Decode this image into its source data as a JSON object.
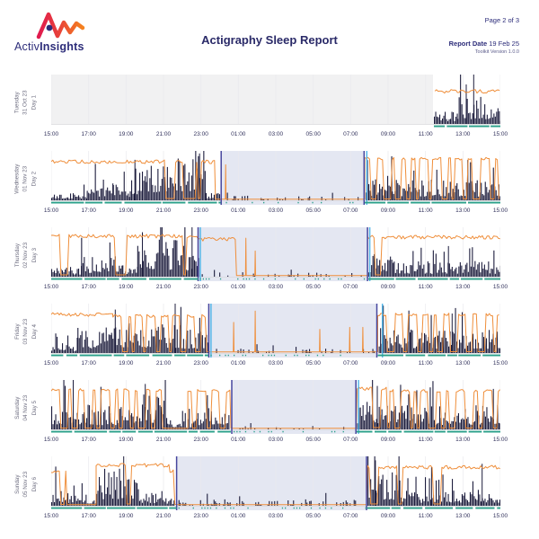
{
  "header": {
    "brand_light": "Activ",
    "brand_bold": "Insights",
    "title": "Actigraphy Sleep Report",
    "page": "Page 2 of 3",
    "report_date_label": "Report Date",
    "report_date": "19 Feb 25",
    "toolkit_version": "Toolkit Version 1.0.0"
  },
  "colors": {
    "bars": "#1d1d3d",
    "light_line": "#ef8e3a",
    "sleep_fill": "#cdd4e8",
    "sleep_edge_purple": "#46469e",
    "sleep_edge_cyan": "#55b6e8",
    "wear": "#2ba08a",
    "no_data": "#f1f1f2",
    "grid": "#e9e9ed",
    "baseline": "#d8d8dc",
    "axis_text": "#32325c",
    "navy_text": "#2d2d7a",
    "logo_red": "#e01a4f",
    "logo_orange": "#f5821f"
  },
  "chart_data": {
    "type": "bar",
    "subtype": "actigraphy-multiday-timeseries",
    "time_base": "hours offset from 15:00 (0 = 15:00, 24 = 15:00 next day)",
    "x_ticks": [
      "15:00",
      "17:00",
      "19:00",
      "21:00",
      "23:00",
      "01:00",
      "03:00",
      "05:00",
      "07:00",
      "09:00",
      "11:00",
      "13:00",
      "15:00"
    ],
    "x_range_hours": [
      0,
      24
    ],
    "grid": "vertical lines at 2-hour ticks",
    "series_semantics": {
      "navy_bars": "physical activity (acceleration)",
      "orange_line": "light exposure",
      "shaded_region": "detected sleep window",
      "purple_vertical_lines": "sleep onset / offset",
      "cyan_vertical_lines": "secondary sleep boundary marker",
      "teal_strip": "wear time indicator",
      "gray_block": "no data recorded"
    },
    "days": [
      {
        "name": "Tuesday",
        "date": "31 Oct 23",
        "day": "Day 1",
        "seed": 11,
        "no_data": [
          0,
          20.4
        ],
        "sleep": null,
        "sleep_onset": null,
        "sleep_wake": null,
        "activity": [
          {
            "a": 20.45,
            "b": 21.7,
            "h": 0.3
          },
          {
            "a": 21.7,
            "b": 23.2,
            "h": 0.55
          },
          {
            "a": 23.2,
            "b": 24,
            "h": 0.32
          }
        ],
        "spikes": [
          {
            "t": 22.55,
            "h": 1.0
          },
          {
            "t": 22.15,
            "h": 0.8
          }
        ],
        "light": [
          {
            "a": 20.5,
            "b": 24,
            "m": "high",
            "lvl": 0.34
          }
        ],
        "light_spikes": [],
        "wear": [
          [
            20.45,
            24
          ]
        ]
      },
      {
        "name": "Wednesday",
        "date": "01 Nov 23",
        "day": "Day 2",
        "seed": 22,
        "no_data": null,
        "sleep": {
          "a": 9.08,
          "b": 16.72,
          "lines": [
            {
              "t": 9.08,
              "c": "purple"
            },
            {
              "t": 16.72,
              "c": "purple"
            },
            {
              "t": 16.86,
              "c": "cyan"
            }
          ]
        },
        "sleep_onset": "00:05",
        "sleep_wake": "07:45",
        "activity": [
          {
            "a": 0,
            "b": 1.9,
            "h": 0.18
          },
          {
            "a": 1.9,
            "b": 3.3,
            "h": 0.42
          },
          {
            "a": 3.3,
            "b": 4.2,
            "h": 0.35
          },
          {
            "a": 4.2,
            "b": 5.1,
            "h": 0.65
          },
          {
            "a": 5.1,
            "b": 8.25,
            "h": 0.92
          },
          {
            "a": 8.25,
            "b": 9.05,
            "h": 0.15
          },
          {
            "a": 9.1,
            "b": 16.7,
            "h": 0.1,
            "d": 0.22
          },
          {
            "a": 16.8,
            "b": 18.2,
            "h": 0.5
          },
          {
            "a": 18.2,
            "b": 24,
            "h": 0.42
          }
        ],
        "spikes": [
          {
            "t": 4.45,
            "h": 0.82
          },
          {
            "t": 7.9,
            "h": 0.95
          }
        ],
        "light": [
          {
            "a": 0,
            "b": 8.78,
            "m": "high",
            "lvl": 0.22
          },
          {
            "a": 8.78,
            "b": 16.75,
            "m": "low"
          },
          {
            "a": 16.75,
            "b": 24,
            "m": "mix",
            "lvl": 0.16
          }
        ],
        "light_spikes": [
          {
            "t": 9.32,
            "h": 0.72
          }
        ],
        "wear": [
          [
            0,
            9.05
          ],
          [
            16.75,
            24
          ]
        ]
      },
      {
        "name": "Thursday",
        "date": "02 Nov 23",
        "day": "Day 3",
        "seed": 33,
        "no_data": null,
        "sleep": {
          "a": 7.85,
          "b": 16.9,
          "lines": [
            {
              "t": 7.85,
              "c": "purple"
            },
            {
              "t": 7.97,
              "c": "cyan"
            },
            {
              "t": 16.9,
              "c": "purple"
            },
            {
              "t": 17.02,
              "c": "cyan"
            }
          ]
        },
        "sleep_onset": "22:50",
        "sleep_wake": "07:55",
        "activity": [
          {
            "a": 0,
            "b": 1.6,
            "h": 0.22
          },
          {
            "a": 1.6,
            "b": 3.8,
            "h": 0.42
          },
          {
            "a": 3.8,
            "b": 4.6,
            "h": 0.3
          },
          {
            "a": 4.6,
            "b": 7.2,
            "h": 0.78
          },
          {
            "a": 7.2,
            "b": 7.85,
            "h": 0.55
          },
          {
            "a": 7.9,
            "b": 16.85,
            "h": 0.09,
            "d": 0.28
          },
          {
            "a": 16.95,
            "b": 18.3,
            "h": 0.48
          },
          {
            "a": 18.3,
            "b": 24,
            "h": 0.32
          }
        ],
        "spikes": [
          {
            "t": 7.5,
            "h": 1.0
          },
          {
            "t": 4.85,
            "h": 0.9
          },
          {
            "t": 21.2,
            "h": 0.62
          }
        ],
        "light": [
          {
            "a": 0,
            "b": 7.85,
            "m": "high",
            "lvl": 0.18
          },
          {
            "a": 7.85,
            "b": 9.9,
            "m": "high",
            "lvl": 0.24
          },
          {
            "a": 9.9,
            "b": 16.9,
            "m": "low"
          },
          {
            "a": 16.9,
            "b": 24,
            "m": "high",
            "lvl": 0.2
          }
        ],
        "light_spikes": [
          {
            "t": 10.4,
            "h": 0.78
          },
          {
            "t": 10.9,
            "h": 0.52
          }
        ],
        "wear": [
          [
            0,
            7.85
          ],
          [
            16.95,
            24
          ]
        ]
      },
      {
        "name": "Friday",
        "date": "03 Nov 23",
        "day": "Day 4",
        "seed": 44,
        "no_data": null,
        "sleep": {
          "a": 8.42,
          "b": 17.4,
          "lines": [
            {
              "t": 8.42,
              "c": "purple"
            },
            {
              "t": 8.54,
              "c": "cyan"
            },
            {
              "t": 17.4,
              "c": "purple"
            },
            {
              "t": 17.7,
              "c": "cyan"
            }
          ]
        },
        "sleep_onset": "23:25",
        "sleep_wake": "08:25",
        "activity": [
          {
            "a": 0,
            "b": 1.4,
            "h": 0.2
          },
          {
            "a": 1.4,
            "b": 3.2,
            "h": 0.52
          },
          {
            "a": 3.2,
            "b": 4.4,
            "h": 0.62
          },
          {
            "a": 4.4,
            "b": 6.9,
            "h": 0.58
          },
          {
            "a": 6.9,
            "b": 8.4,
            "h": 0.48
          },
          {
            "a": 8.45,
            "b": 17.35,
            "h": 0.09,
            "d": 0.2
          },
          {
            "a": 17.5,
            "b": 19.2,
            "h": 0.52
          },
          {
            "a": 19.2,
            "b": 24,
            "h": 0.48
          }
        ],
        "spikes": [
          {
            "t": 6.6,
            "h": 1.0
          },
          {
            "t": 3.4,
            "h": 0.88
          },
          {
            "t": 21.4,
            "h": 0.8
          }
        ],
        "light": [
          {
            "a": 0,
            "b": 3.3,
            "m": "high",
            "lvl": 0.22
          },
          {
            "a": 3.3,
            "b": 8.4,
            "m": "mix",
            "lvl": 0.25
          },
          {
            "a": 8.4,
            "b": 17.45,
            "m": "low"
          },
          {
            "a": 17.45,
            "b": 24,
            "m": "mix",
            "lvl": 0.22
          }
        ],
        "light_spikes": [
          {
            "t": 9.75,
            "h": 0.62
          },
          {
            "t": 10.9,
            "h": 0.85
          },
          {
            "t": 14.35,
            "h": 0.48
          },
          {
            "t": 15.95,
            "h": 0.52
          },
          {
            "t": 16.65,
            "h": 0.52
          }
        ],
        "wear": [
          [
            0,
            8.4
          ],
          [
            17.45,
            24
          ]
        ]
      },
      {
        "name": "Saturday",
        "date": "04 Nov 23",
        "day": "Day 5",
        "seed": 55,
        "no_data": null,
        "sleep": {
          "a": 9.65,
          "b": 16.28,
          "lines": [
            {
              "t": 9.65,
              "c": "purple"
            },
            {
              "t": 16.28,
              "c": "purple"
            },
            {
              "t": 16.42,
              "c": "cyan"
            }
          ]
        },
        "sleep_onset": "00:40",
        "sleep_wake": "07:15",
        "activity": [
          {
            "a": 0,
            "b": 2.2,
            "h": 0.55
          },
          {
            "a": 2.2,
            "b": 4.2,
            "h": 0.48
          },
          {
            "a": 4.2,
            "b": 6.2,
            "h": 0.72
          },
          {
            "a": 6.2,
            "b": 7.6,
            "h": 0.22
          },
          {
            "a": 7.6,
            "b": 9.5,
            "h": 0.48
          },
          {
            "a": 9.7,
            "b": 16.2,
            "h": 0.07,
            "d": 0.2
          },
          {
            "a": 16.35,
            "b": 18.5,
            "h": 0.58
          },
          {
            "a": 18.5,
            "b": 24,
            "h": 0.5
          }
        ],
        "spikes": [
          {
            "t": 1.15,
            "h": 1.0
          },
          {
            "t": 5.0,
            "h": 0.92
          },
          {
            "t": 17.4,
            "h": 0.88
          },
          {
            "t": 23.6,
            "h": 0.82
          }
        ],
        "light": [
          {
            "a": 0,
            "b": 6.2,
            "m": "mix",
            "lvl": 0.2
          },
          {
            "a": 6.2,
            "b": 7.3,
            "m": "low"
          },
          {
            "a": 7.3,
            "b": 9.6,
            "m": "mix",
            "lvl": 0.22
          },
          {
            "a": 9.6,
            "b": 16.3,
            "m": "low"
          },
          {
            "a": 16.35,
            "b": 18.1,
            "m": "high",
            "lvl": 0.18
          },
          {
            "a": 18.1,
            "b": 24,
            "m": "mix",
            "lvl": 0.22
          }
        ],
        "light_spikes": [],
        "wear": [
          [
            0,
            9.6
          ],
          [
            16.32,
            24
          ]
        ]
      },
      {
        "name": "Sunday",
        "date": "05 Nov 23",
        "day": "Day 6",
        "seed": 66,
        "no_data": null,
        "sleep": {
          "a": 6.7,
          "b": 16.85,
          "lines": [
            {
              "t": 6.7,
              "c": "purple"
            },
            {
              "t": 16.85,
              "c": "purple"
            }
          ]
        },
        "sleep_onset": "21:40",
        "sleep_wake": "07:50",
        "activity": [
          {
            "a": 0,
            "b": 0.9,
            "h": 0.4
          },
          {
            "a": 0.9,
            "b": 2.4,
            "h": 0.25
          },
          {
            "a": 2.4,
            "b": 4.7,
            "h": 0.75
          },
          {
            "a": 4.7,
            "b": 5.6,
            "h": 0.3
          },
          {
            "a": 5.6,
            "b": 6.6,
            "h": 0.2
          },
          {
            "a": 6.8,
            "b": 16.8,
            "h": 0.13,
            "d": 0.38
          },
          {
            "a": 16.9,
            "b": 18.6,
            "h": 0.68
          },
          {
            "a": 18.6,
            "b": 21.5,
            "h": 0.32
          },
          {
            "a": 21.5,
            "b": 24,
            "h": 0.35
          }
        ],
        "spikes": [
          {
            "t": 3.85,
            "h": 1.0
          },
          {
            "t": 17.3,
            "h": 0.92
          },
          {
            "t": 20.3,
            "h": 0.78
          },
          {
            "t": 23.0,
            "h": 0.85
          }
        ],
        "light": [
          {
            "a": 0,
            "b": 0.85,
            "m": "mix",
            "lvl": 0.3
          },
          {
            "a": 0.85,
            "b": 2.4,
            "m": "low"
          },
          {
            "a": 2.4,
            "b": 6.35,
            "m": "high",
            "lvl": 0.18
          },
          {
            "a": 6.35,
            "b": 6.7,
            "m": "mix",
            "lvl": 0.3
          },
          {
            "a": 6.7,
            "b": 16.85,
            "m": "low"
          },
          {
            "a": 16.9,
            "b": 24,
            "m": "high",
            "lvl": 0.22
          }
        ],
        "light_spikes": [],
        "wear": [
          [
            0,
            6.7
          ],
          [
            16.88,
            24
          ]
        ]
      }
    ]
  }
}
